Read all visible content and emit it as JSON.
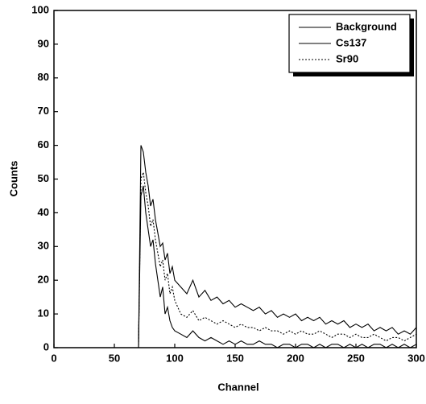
{
  "chart_data": {
    "type": "line",
    "x_label": "Channel",
    "y_label": "Counts",
    "x": [
      0,
      70,
      72,
      74,
      76,
      78,
      80,
      82,
      84,
      86,
      88,
      90,
      92,
      94,
      96,
      98,
      100,
      105,
      110,
      115,
      120,
      125,
      130,
      135,
      140,
      145,
      150,
      155,
      160,
      165,
      170,
      175,
      180,
      185,
      190,
      195,
      200,
      205,
      210,
      215,
      220,
      225,
      230,
      235,
      240,
      245,
      250,
      255,
      260,
      265,
      270,
      275,
      280,
      285,
      290,
      295,
      300
    ],
    "series": [
      {
        "name": "Background",
        "color": "#000000",
        "style": "solid",
        "values": [
          0,
          0,
          45,
          48,
          40,
          35,
          30,
          32,
          25,
          20,
          15,
          18,
          10,
          12,
          8,
          6,
          5,
          4,
          3,
          5,
          3,
          2,
          3,
          2,
          1,
          2,
          1,
          2,
          1,
          1,
          2,
          1,
          1,
          0,
          1,
          1,
          0,
          1,
          1,
          0,
          1,
          0,
          1,
          1,
          0,
          1,
          0,
          1,
          0,
          1,
          1,
          0,
          1,
          0,
          1,
          0,
          1
        ]
      },
      {
        "name": "Cs137",
        "color": "#000000",
        "style": "solid",
        "values": [
          0,
          0,
          60,
          58,
          52,
          48,
          42,
          44,
          38,
          34,
          30,
          31,
          26,
          28,
          22,
          24,
          20,
          18,
          16,
          20,
          15,
          17,
          14,
          15,
          13,
          14,
          12,
          13,
          12,
          11,
          12,
          10,
          11,
          9,
          10,
          9,
          10,
          8,
          9,
          8,
          9,
          7,
          8,
          7,
          8,
          6,
          7,
          6,
          7,
          5,
          6,
          5,
          6,
          4,
          5,
          4,
          6
        ]
      },
      {
        "name": "Sr90",
        "color": "#000000",
        "style": "dotted",
        "values": [
          0,
          0,
          50,
          52,
          46,
          42,
          36,
          38,
          32,
          28,
          24,
          26,
          20,
          22,
          16,
          18,
          14,
          10,
          9,
          11,
          8,
          9,
          8,
          7,
          8,
          7,
          6,
          7,
          6,
          6,
          5,
          6,
          5,
          5,
          4,
          5,
          4,
          5,
          4,
          4,
          5,
          4,
          3,
          4,
          4,
          3,
          4,
          3,
          3,
          4,
          3,
          2,
          3,
          3,
          2,
          3,
          4
        ]
      }
    ],
    "xlim": [
      0,
      300
    ],
    "xticks": [
      0,
      50,
      100,
      150,
      200,
      250,
      300
    ],
    "ylim": [
      0,
      100
    ],
    "yticks": [
      0,
      10,
      20,
      30,
      40,
      50,
      60,
      70,
      80,
      90,
      100
    ],
    "legend": "upper right"
  }
}
